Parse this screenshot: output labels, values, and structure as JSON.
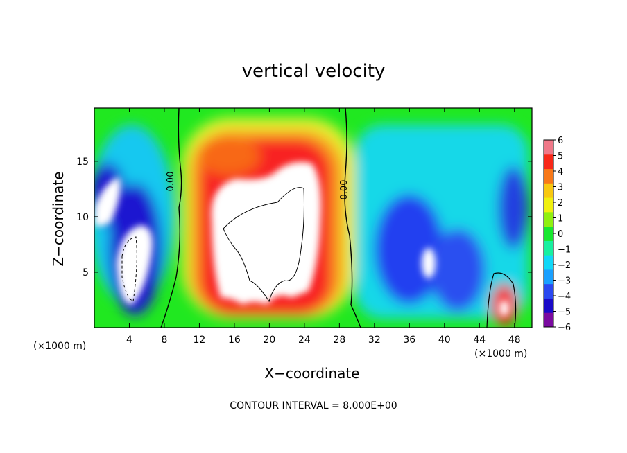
{
  "chart_data": {
    "type": "heatmap",
    "title": "vertical velocity",
    "xlabel": "X−coordinate",
    "ylabel": "Z−coordinate",
    "x_unit": "(×1000 m)",
    "x_ticks": [
      4,
      8,
      12,
      16,
      20,
      24,
      28,
      32,
      36,
      40,
      44,
      48
    ],
    "y_ticks": [
      5,
      10,
      15
    ],
    "xlim": [
      0,
      50
    ],
    "ylim": [
      0,
      19.8
    ],
    "colorbar": {
      "ticks": [
        6,
        5,
        4,
        3,
        2,
        1,
        0,
        -1,
        -2,
        -3,
        -4,
        -5,
        -6
      ],
      "tick_labels": [
        "6",
        "5",
        "4",
        "3",
        "2",
        "1",
        "0",
        "−1",
        "−2",
        "−3",
        "−4",
        "−5",
        "−6"
      ],
      "range": [
        -6,
        6
      ],
      "colors": [
        "#7a0aa0",
        "#1a0ac8",
        "#2a48f0",
        "#1aa0ff",
        "#10d8f8",
        "#18f0a0",
        "#18e830",
        "#90f010",
        "#f0f010",
        "#f8c810",
        "#f87818",
        "#f82818",
        "#f07888"
      ]
    },
    "contour_labels": [
      "0.00",
      "0.00"
    ],
    "contour_zero_x": [
      9.7,
      29.1
    ],
    "features": [
      {
        "name": "left downdraft",
        "x": 4,
        "z": 7,
        "value": -6
      },
      {
        "name": "central updraft core",
        "x": 20,
        "z": 9,
        "value": 6
      },
      {
        "name": "central updraft top",
        "x": 15.5,
        "z": 16,
        "value": 4.5
      },
      {
        "name": "right downdraft region",
        "x": 38,
        "z": 5,
        "value": -4.5
      },
      {
        "name": "small updraft",
        "x": 46.5,
        "z": 1.8,
        "value": 6
      }
    ],
    "contour_interval_text": "CONTOUR INTERVAL = 8.000E+00"
  }
}
